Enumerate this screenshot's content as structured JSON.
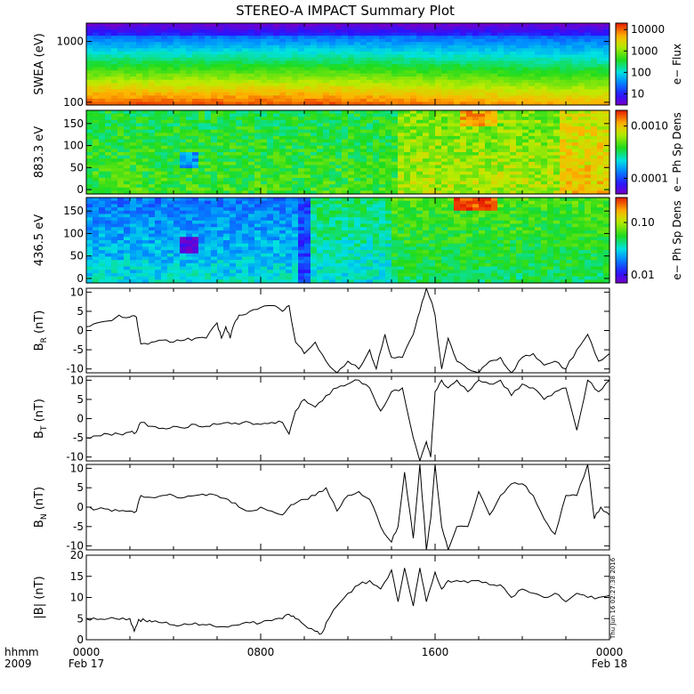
{
  "title": "STEREO-A IMPACT Summary Plot",
  "timestamp": "Thu Jun 16 02:27:38 2016",
  "time_axis": {
    "row1_label": "hhmm",
    "row2_label": "2009",
    "ticks": [
      {
        "label": "0000",
        "sublabel": "Feb 17",
        "hour": 0
      },
      {
        "label": "0800",
        "sublabel": "",
        "hour": 8
      },
      {
        "label": "1600",
        "sublabel": "",
        "hour": 16
      },
      {
        "label": "0000",
        "sublabel": "Feb 18",
        "hour": 24
      }
    ]
  },
  "chart_data": [
    {
      "type": "heatmap",
      "ylabel": "SWEA (eV)",
      "yscale": "log",
      "ylim": [
        90,
        2000
      ],
      "yticks": [
        {
          "v": 100,
          "label": "100"
        },
        {
          "v": 1000,
          "label": "1000"
        }
      ],
      "colorbar": {
        "label": "e− Flux",
        "scale": "log",
        "range": [
          3,
          20000
        ],
        "ticks": [
          {
            "v": 10,
            "label": "10"
          },
          {
            "v": 100,
            "label": "100"
          },
          {
            "v": 1000,
            "label": "1000"
          },
          {
            "v": 10000,
            "label": "10000"
          }
        ]
      }
    },
    {
      "type": "heatmap",
      "ylabel": "883.3 eV",
      "ylim": [
        -10,
        180
      ],
      "yticks": [
        {
          "v": 0,
          "label": "0"
        },
        {
          "v": 50,
          "label": "50"
        },
        {
          "v": 100,
          "label": "100"
        },
        {
          "v": 150,
          "label": "150"
        }
      ],
      "colorbar": {
        "label": "e− Ph Sp Dens",
        "scale": "log",
        "range": [
          5e-05,
          0.002
        ],
        "ticks": [
          {
            "v": 0.0001,
            "label": "0.0001"
          },
          {
            "v": 0.001,
            "label": "0.0010"
          }
        ]
      }
    },
    {
      "type": "heatmap",
      "ylabel": "436.5 eV",
      "ylim": [
        -10,
        180
      ],
      "yticks": [
        {
          "v": 0,
          "label": "0"
        },
        {
          "v": 50,
          "label": "50"
        },
        {
          "v": 100,
          "label": "100"
        },
        {
          "v": 150,
          "label": "150"
        }
      ],
      "colorbar": {
        "label": "e− Ph Sp Dens",
        "scale": "log",
        "range": [
          0.007,
          0.3
        ],
        "ticks": [
          {
            "v": 0.01,
            "label": "0.01"
          },
          {
            "v": 0.1,
            "label": "0.10"
          }
        ]
      }
    },
    {
      "type": "line",
      "ylabel_main": "B",
      "ylabel_sub": "R",
      "ylabel_unit": "(nT)",
      "ylim": [
        -11,
        11
      ],
      "yticks": [
        {
          "v": -10,
          "label": "-10"
        },
        {
          "v": -5,
          "label": "-5"
        },
        {
          "v": 0,
          "label": "0"
        },
        {
          "v": 5,
          "label": "5"
        },
        {
          "v": 10,
          "label": "10"
        }
      ],
      "x": [
        0,
        0.5,
        1,
        1.5,
        2,
        2.3,
        2.5,
        3,
        3.5,
        4,
        4.5,
        5,
        5.5,
        6,
        6.2,
        6.4,
        6.6,
        6.8,
        7,
        7.5,
        8,
        8.5,
        9,
        9.3,
        9.6,
        10,
        10.5,
        11,
        11.5,
        12,
        12.5,
        13,
        13.3,
        13.7,
        14,
        14.5,
        15,
        15.3,
        15.6,
        15.8,
        16,
        16.3,
        16.6,
        17,
        17.5,
        18,
        18.5,
        19,
        19.5,
        20,
        20.5,
        21,
        21.5,
        22,
        22.5,
        23,
        23.5,
        24
      ],
      "y": [
        1,
        2,
        2.5,
        4,
        3.5,
        3.5,
        -3.5,
        -3,
        -2.5,
        -3,
        -2.5,
        -2,
        -2,
        2,
        -2,
        1,
        -2,
        2,
        4,
        5,
        6,
        6.5,
        5,
        6.5,
        -3,
        -6,
        -3,
        -8,
        -11,
        -8,
        -10,
        -5,
        -10,
        -1,
        -7,
        -7,
        -1,
        5,
        11,
        8,
        4,
        -10,
        -2,
        -8,
        -10,
        -11,
        -8,
        -7,
        -11,
        -7,
        -6,
        -9,
        -8,
        -10,
        -5,
        -1,
        -8,
        -6
      ]
    },
    {
      "type": "line",
      "ylabel_main": "B",
      "ylabel_sub": "T",
      "ylabel_unit": "(nT)",
      "ylim": [
        -11,
        11
      ],
      "yticks": [
        {
          "v": -10,
          "label": "-10"
        },
        {
          "v": -5,
          "label": "-5"
        },
        {
          "v": 0,
          "label": "0"
        },
        {
          "v": 5,
          "label": "5"
        },
        {
          "v": 10,
          "label": "10"
        }
      ],
      "x": [
        0,
        0.5,
        1,
        1.5,
        2,
        2.3,
        2.5,
        3,
        3.5,
        4,
        4.5,
        5,
        5.5,
        6,
        6.5,
        7,
        7.5,
        8,
        8.5,
        9,
        9.3,
        9.6,
        10,
        10.5,
        11,
        11.5,
        12,
        12.5,
        13,
        13.5,
        14,
        14.5,
        15,
        15.3,
        15.6,
        15.8,
        16,
        16.3,
        16.6,
        17,
        17.5,
        18,
        18.5,
        19,
        19.5,
        20,
        20.5,
        21,
        21.5,
        22,
        22.5,
        23,
        23.5,
        24
      ],
      "y": [
        -5,
        -4.5,
        -4,
        -4,
        -3.5,
        -3.5,
        -1,
        -2,
        -2.5,
        -2,
        -2.5,
        -1.5,
        -2,
        -1.5,
        -1,
        -1.5,
        -1,
        -1.5,
        -1,
        -1,
        -4,
        2,
        5,
        3,
        6,
        8,
        9,
        10,
        8,
        2,
        7,
        8,
        -5,
        -11,
        -6,
        -10,
        7,
        10,
        8,
        10,
        7,
        10,
        9,
        10,
        6,
        9,
        8,
        5,
        7,
        8,
        -3,
        10,
        7,
        10
      ]
    },
    {
      "type": "line",
      "ylabel_main": "B",
      "ylabel_sub": "N",
      "ylabel_unit": "(nT)",
      "ylim": [
        -11,
        11
      ],
      "yticks": [
        {
          "v": -10,
          "label": "-10"
        },
        {
          "v": -5,
          "label": "-5"
        },
        {
          "v": 0,
          "label": "0"
        },
        {
          "v": 5,
          "label": "5"
        },
        {
          "v": 10,
          "label": "10"
        }
      ],
      "x": [
        0,
        0.5,
        1,
        1.5,
        2,
        2.3,
        2.5,
        3,
        3.5,
        4,
        4.5,
        5,
        5.5,
        6,
        6.5,
        7,
        7.5,
        8,
        8.5,
        9,
        9.3,
        9.6,
        10,
        10.5,
        11,
        11.5,
        12,
        12.5,
        13,
        13.5,
        14,
        14.3,
        14.6,
        15,
        15.3,
        15.6,
        15.8,
        16,
        16.3,
        16.6,
        17,
        17.5,
        18,
        18.5,
        19,
        19.5,
        20,
        20.5,
        21,
        21.5,
        22,
        22.5,
        23,
        23.3,
        23.6,
        24
      ],
      "y": [
        0,
        -0.5,
        -0.5,
        -1,
        -1,
        -1,
        3,
        2.5,
        3,
        3,
        2.5,
        3,
        3,
        3,
        2,
        0,
        -1,
        0,
        -1,
        -2,
        0,
        1,
        2,
        3,
        5,
        -1,
        3,
        4,
        2,
        -5,
        -9,
        -5,
        9,
        -8,
        11,
        -11,
        -3,
        11,
        -5,
        -11,
        -5,
        -5,
        4,
        -2,
        3,
        6,
        6,
        3,
        -3,
        -7,
        3,
        3,
        11,
        -3,
        0,
        -2
      ]
    },
    {
      "type": "line",
      "ylabel_main": "|B|",
      "ylabel_sub": "",
      "ylabel_unit": "(nT)",
      "ylim": [
        0,
        20
      ],
      "yticks": [
        {
          "v": 0,
          "label": "0"
        },
        {
          "v": 5,
          "label": "5"
        },
        {
          "v": 10,
          "label": "10"
        },
        {
          "v": 15,
          "label": "15"
        },
        {
          "v": 20,
          "label": "20"
        }
      ],
      "x": [
        0,
        0.5,
        1,
        1.5,
        2,
        2.2,
        2.4,
        2.7,
        3,
        3.5,
        4,
        4.5,
        5,
        5.5,
        6,
        6.5,
        7,
        7.5,
        8,
        8.5,
        9,
        9.3,
        9.6,
        10,
        10.5,
        10.8,
        11,
        11.5,
        12,
        12.5,
        13,
        13.5,
        14,
        14.3,
        14.6,
        15,
        15.3,
        15.6,
        16,
        16.3,
        16.6,
        17,
        17.5,
        18,
        18.5,
        19,
        19.5,
        20,
        20.5,
        21,
        21.5,
        22,
        22.5,
        23,
        23.5,
        24
      ],
      "y": [
        5,
        4.8,
        5,
        4.8,
        5,
        2,
        4.8,
        4.5,
        4.2,
        4,
        3.5,
        3.8,
        4,
        3.5,
        3,
        3,
        3.5,
        4,
        4,
        4.5,
        5,
        6,
        5,
        3.5,
        2,
        1.5,
        4,
        8,
        11,
        13,
        14,
        12,
        16.5,
        9,
        17,
        8,
        17,
        9,
        16,
        12,
        14,
        14,
        13.5,
        14,
        13,
        13,
        10,
        12,
        11,
        10,
        11,
        9,
        11,
        10,
        10,
        10.5
      ]
    }
  ]
}
